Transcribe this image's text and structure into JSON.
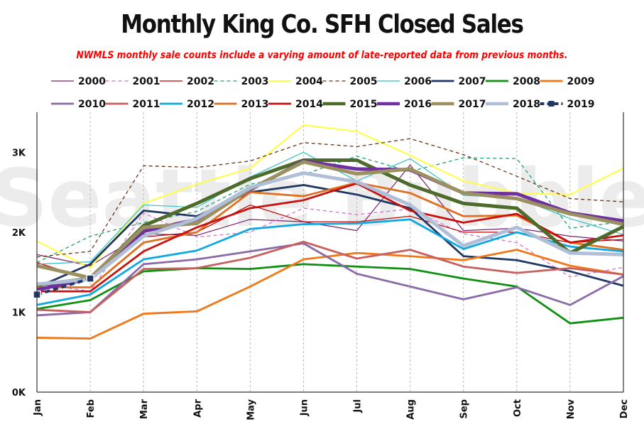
{
  "chart_data": {
    "type": "line",
    "title": "Monthly King Co. SFH Closed Sales",
    "subtitle": "NWMLS monthly sale counts include a varying amount of late-reported  data from previous months.",
    "watermark": "Seattle Bubble",
    "categories": [
      "Jan",
      "Feb",
      "Mar",
      "Apr",
      "May",
      "Jun",
      "Jul",
      "Aug",
      "Sep",
      "Oct",
      "Nov",
      "Dec"
    ],
    "y_ticks": [
      {
        "value": 0,
        "label": "0K"
      },
      {
        "value": 1000,
        "label": "1K"
      },
      {
        "value": 2000,
        "label": "2K"
      },
      {
        "value": 3000,
        "label": "3K"
      }
    ],
    "ylim": [
      0,
      3500
    ],
    "grid": "vertical",
    "legend_position": "top",
    "series": [
      {
        "name": "2000",
        "color": "#7a1f6a",
        "style": "thin",
        "values": [
          1720,
          1580,
          1980,
          1960,
          2160,
          2130,
          2020,
          2840,
          2020,
          2050,
          1950,
          1890
        ]
      },
      {
        "name": "2001",
        "color": "#d86fd0",
        "style": "dashed",
        "values": [
          1360,
          1260,
          2240,
          1940,
          2000,
          2300,
          2220,
          2290,
          1980,
          1870,
          1440,
          1560
        ]
      },
      {
        "name": "2002",
        "color": "#c00000",
        "style": "thin",
        "values": [
          1620,
          1410,
          1940,
          2000,
          2340,
          2130,
          2130,
          2200,
          2000,
          2000,
          1870,
          1910
        ]
      },
      {
        "name": "2003",
        "color": "#21a070",
        "style": "dashed",
        "values": [
          1620,
          1950,
          2120,
          2260,
          2600,
          2720,
          2950,
          2760,
          2930,
          2920,
          2050,
          2130
        ]
      },
      {
        "name": "2004",
        "color": "#ffff40",
        "style": "medium",
        "values": [
          1890,
          1550,
          2360,
          2600,
          2800,
          3340,
          3260,
          2960,
          2640,
          2490,
          2470,
          2800
        ]
      },
      {
        "name": "2005",
        "color": "#6b3210",
        "style": "dashed",
        "values": [
          1690,
          1760,
          2830,
          2810,
          2890,
          3120,
          3070,
          3170,
          2970,
          2700,
          2420,
          2380
        ]
      },
      {
        "name": "2006",
        "color": "#33c0c0",
        "style": "thin",
        "values": [
          1600,
          1630,
          2340,
          2310,
          2690,
          3000,
          2640,
          2920,
          2460,
          2430,
          2170,
          1970
        ]
      },
      {
        "name": "2007",
        "color": "#1f3864",
        "style": "thick",
        "values": [
          1310,
          1600,
          2270,
          2200,
          2500,
          2590,
          2470,
          2300,
          1700,
          1650,
          1510,
          1330
        ]
      },
      {
        "name": "2008",
        "color": "#109010",
        "style": "thick",
        "values": [
          1040,
          1150,
          1510,
          1550,
          1540,
          1600,
          1570,
          1540,
          1420,
          1320,
          860,
          930
        ]
      },
      {
        "name": "2009",
        "color": "#f07818",
        "style": "thick",
        "values": [
          680,
          670,
          980,
          1010,
          1320,
          1660,
          1740,
          1700,
          1650,
          1780,
          1580,
          1470
        ]
      },
      {
        "name": "2010",
        "color": "#8a6aa8",
        "style": "thick",
        "values": [
          960,
          1000,
          1600,
          1660,
          1760,
          1860,
          1480,
          1320,
          1160,
          1310,
          1090,
          1450
        ]
      },
      {
        "name": "2011",
        "color": "#c86060",
        "style": "thick",
        "values": [
          1030,
          1000,
          1540,
          1550,
          1680,
          1880,
          1670,
          1780,
          1570,
          1490,
          1550,
          1470
        ]
      },
      {
        "name": "2012",
        "color": "#10a8e0",
        "style": "thick",
        "values": [
          1090,
          1220,
          1660,
          1770,
          2040,
          2100,
          2110,
          2160,
          1790,
          2000,
          1820,
          1760
        ]
      },
      {
        "name": "2013",
        "color": "#e07020",
        "style": "thick",
        "values": [
          1310,
          1310,
          1870,
          2000,
          2500,
          2450,
          2620,
          2490,
          2200,
          2210,
          1870,
          1780
        ]
      },
      {
        "name": "2014",
        "color": "#c81010",
        "style": "thick",
        "values": [
          1260,
          1260,
          1760,
          2060,
          2300,
          2400,
          2610,
          2270,
          2120,
          2230,
          1870,
          1960
        ]
      },
      {
        "name": "2015",
        "color": "#4d6b2a",
        "style": "heavy",
        "values": [
          1340,
          1420,
          2080,
          2360,
          2670,
          2900,
          2900,
          2590,
          2360,
          2300,
          1740,
          2070
        ]
      },
      {
        "name": "2016",
        "color": "#7030a0",
        "style": "heavy",
        "values": [
          1280,
          1420,
          2010,
          2160,
          2530,
          2890,
          2790,
          2780,
          2490,
          2480,
          2240,
          2140
        ]
      },
      {
        "name": "2017",
        "color": "#9a9060",
        "style": "heavy",
        "values": [
          1580,
          1430,
          2060,
          2110,
          2540,
          2880,
          2730,
          2790,
          2490,
          2420,
          2230,
          2100
        ]
      },
      {
        "name": "2018",
        "color": "#b0bed8",
        "style": "heavy",
        "values": [
          1350,
          1410,
          1950,
          2170,
          2560,
          2740,
          2630,
          2340,
          1830,
          2060,
          1740,
          1720
        ]
      },
      {
        "name": "2019",
        "color": "#1f3864",
        "style": "square-dash",
        "values": [
          1220,
          1420,
          null,
          null,
          null,
          null,
          null,
          null,
          null,
          null,
          null,
          null
        ]
      }
    ]
  }
}
